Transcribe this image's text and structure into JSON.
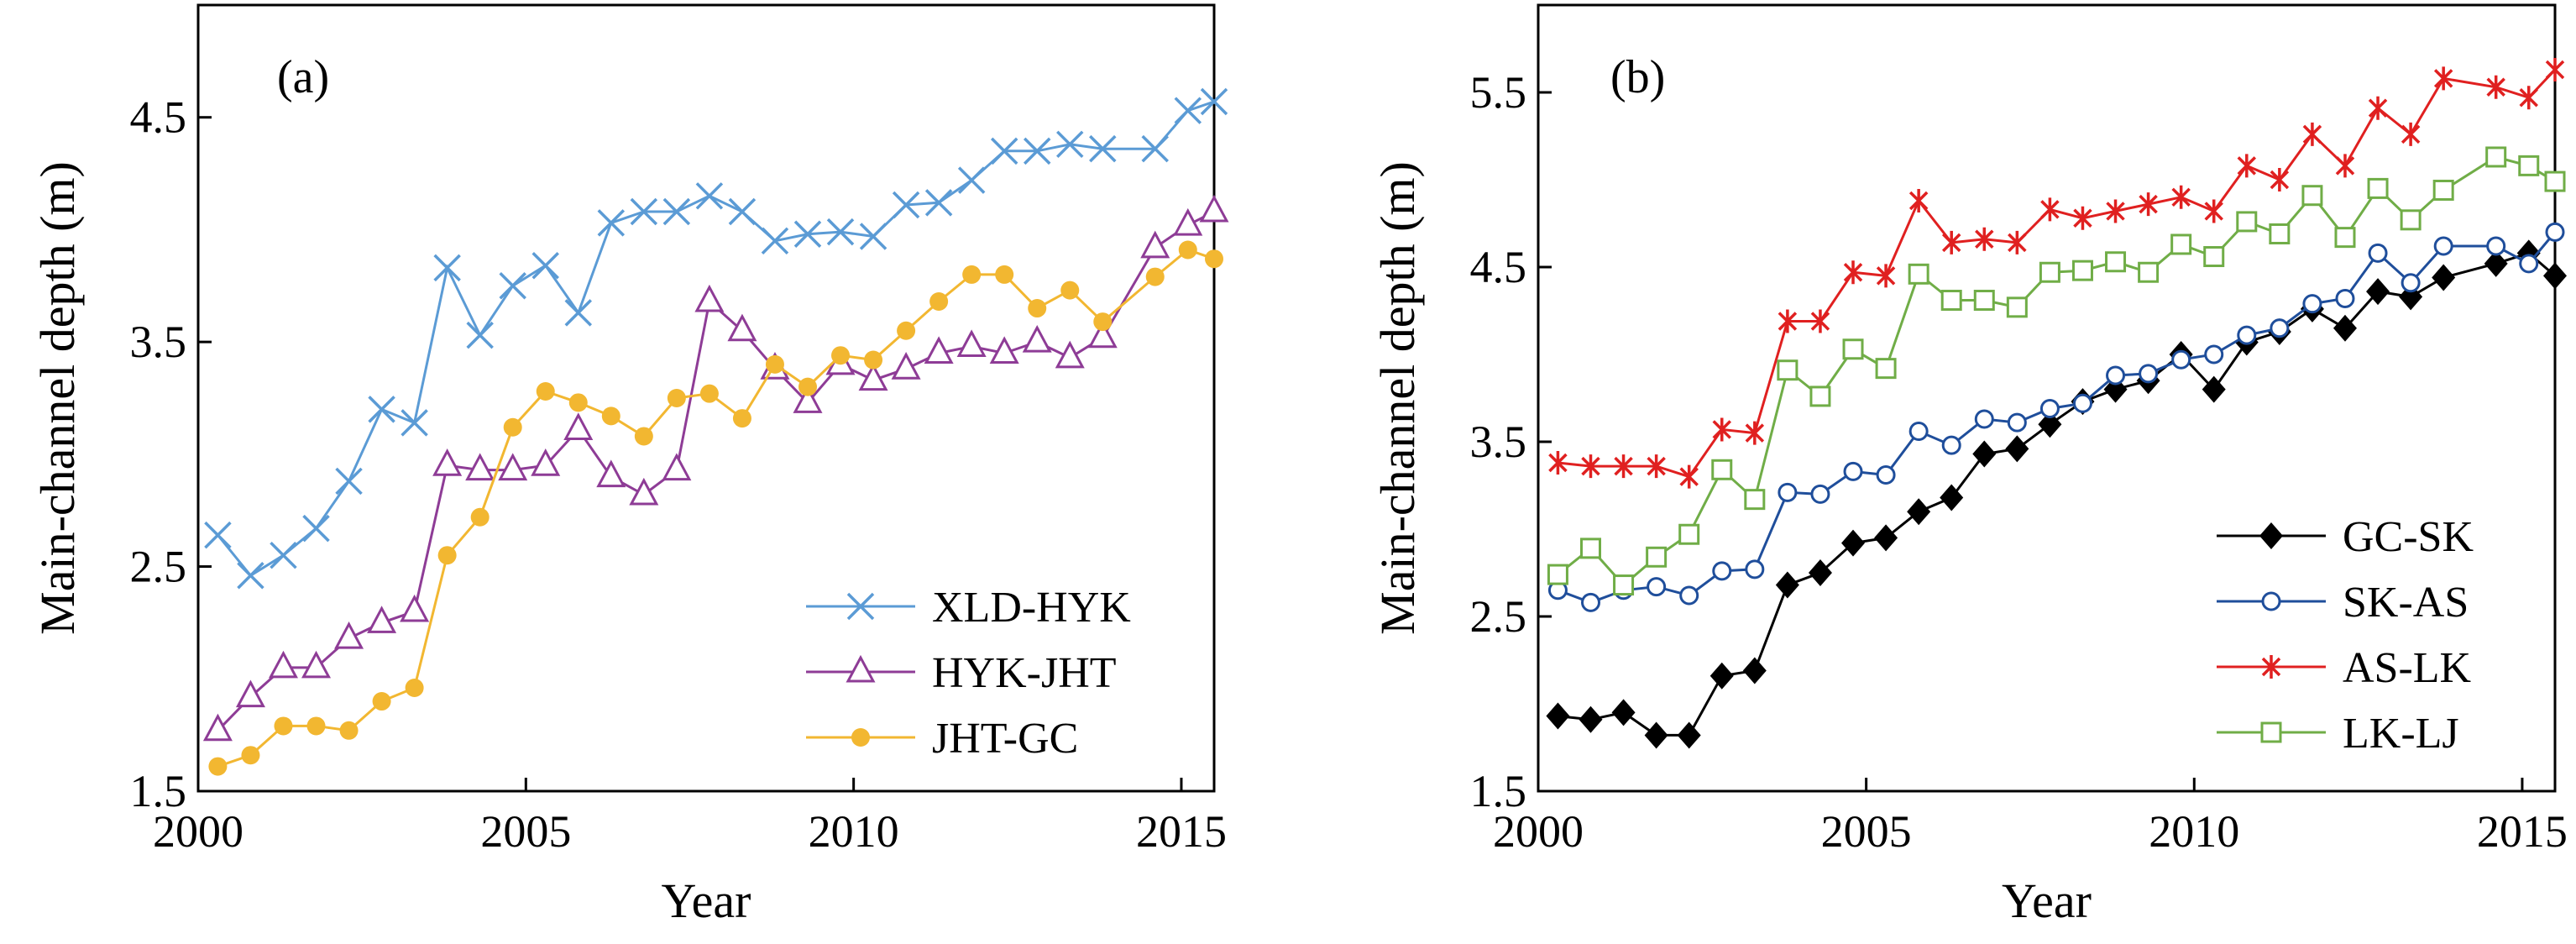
{
  "chart_data": [
    {
      "type": "line",
      "panel_label": "(a)",
      "xlabel": "Year",
      "ylabel": "Main-channel depth (m)",
      "xlim": [
        2000,
        2015.5
      ],
      "ylim": [
        1.5,
        5.0
      ],
      "xticks": [
        2000,
        2005,
        2010,
        2015
      ],
      "yticks": [
        1.5,
        2.5,
        3.5,
        4.5
      ],
      "grid": false,
      "legend_position": "bottom-right",
      "series": [
        {
          "name": "XLD-HYK",
          "color": "#5b9bd5",
          "marker": "x",
          "x": [
            2000.3,
            2000.8,
            2001.3,
            2001.8,
            2002.3,
            2002.8,
            2003.3,
            2003.8,
            2004.3,
            2004.8,
            2005.3,
            2005.8,
            2006.3,
            2006.8,
            2007.3,
            2007.8,
            2008.3,
            2008.8,
            2009.3,
            2009.8,
            2010.3,
            2010.8,
            2011.3,
            2011.8,
            2012.3,
            2012.8,
            2013.3,
            2013.8,
            2014.6,
            2015.1,
            2015.5
          ],
          "y": [
            2.64,
            2.46,
            2.55,
            2.67,
            2.88,
            3.2,
            3.14,
            3.83,
            3.53,
            3.75,
            3.84,
            3.63,
            4.03,
            4.08,
            4.08,
            4.15,
            4.08,
            3.95,
            3.98,
            3.99,
            3.97,
            4.11,
            4.12,
            4.22,
            4.35,
            4.35,
            4.38,
            4.36,
            4.36,
            4.53,
            4.57
          ]
        },
        {
          "name": "HYK-JHT",
          "color": "#8e3c96",
          "marker": "triangle-open",
          "x": [
            2000.3,
            2000.8,
            2001.3,
            2001.8,
            2002.3,
            2002.8,
            2003.3,
            2003.8,
            2004.3,
            2004.8,
            2005.3,
            2005.8,
            2006.3,
            2006.8,
            2007.3,
            2007.8,
            2008.3,
            2008.8,
            2009.3,
            2009.8,
            2010.3,
            2010.8,
            2011.3,
            2011.8,
            2012.3,
            2012.8,
            2013.3,
            2013.8,
            2014.6,
            2015.1,
            2015.5
          ],
          "y": [
            1.77,
            1.92,
            2.05,
            2.05,
            2.18,
            2.25,
            2.3,
            2.95,
            2.93,
            2.93,
            2.95,
            3.11,
            2.9,
            2.82,
            2.93,
            3.68,
            3.55,
            3.38,
            3.23,
            3.4,
            3.33,
            3.38,
            3.45,
            3.48,
            3.45,
            3.5,
            3.43,
            3.52,
            3.92,
            4.02,
            4.08
          ]
        },
        {
          "name": "JHT-GC",
          "color": "#f2b731",
          "marker": "circle",
          "x": [
            2000.3,
            2000.8,
            2001.3,
            2001.8,
            2002.3,
            2002.8,
            2003.3,
            2003.8,
            2004.3,
            2004.8,
            2005.3,
            2005.8,
            2006.3,
            2006.8,
            2007.3,
            2007.8,
            2008.3,
            2008.8,
            2009.3,
            2009.8,
            2010.3,
            2010.8,
            2011.3,
            2011.8,
            2012.3,
            2012.8,
            2013.3,
            2013.8,
            2014.6,
            2015.1,
            2015.5
          ],
          "y": [
            1.61,
            1.66,
            1.79,
            1.79,
            1.77,
            1.9,
            1.96,
            2.55,
            2.72,
            3.12,
            3.28,
            3.23,
            3.17,
            3.08,
            3.25,
            3.27,
            3.16,
            3.4,
            3.3,
            3.44,
            3.42,
            3.55,
            3.68,
            3.8,
            3.8,
            3.65,
            3.73,
            3.59,
            3.79,
            3.91,
            3.87
          ]
        }
      ]
    },
    {
      "type": "line",
      "panel_label": "(b)",
      "xlabel": "Year",
      "ylabel": "Main-channel depth (m)",
      "xlim": [
        2000,
        2015.5
      ],
      "ylim": [
        1.5,
        6.0
      ],
      "xticks": [
        2000,
        2005,
        2010,
        2015
      ],
      "yticks": [
        1.5,
        2.5,
        3.5,
        4.5,
        5.5
      ],
      "grid": false,
      "legend_position": "bottom-right",
      "series": [
        {
          "name": "GC-SK",
          "color": "#000000",
          "marker": "diamond",
          "x": [
            2000.3,
            2000.8,
            2001.3,
            2001.8,
            2002.3,
            2002.8,
            2003.3,
            2003.8,
            2004.3,
            2004.8,
            2005.3,
            2005.8,
            2006.3,
            2006.8,
            2007.3,
            2007.8,
            2008.3,
            2008.8,
            2009.3,
            2009.8,
            2010.3,
            2010.8,
            2011.3,
            2011.8,
            2012.3,
            2012.8,
            2013.3,
            2013.8,
            2014.6,
            2015.1,
            2015.5
          ],
          "y": [
            1.93,
            1.91,
            1.95,
            1.82,
            1.82,
            2.16,
            2.19,
            2.68,
            2.75,
            2.92,
            2.95,
            3.1,
            3.18,
            3.43,
            3.46,
            3.6,
            3.73,
            3.8,
            3.85,
            4.0,
            3.8,
            4.07,
            4.13,
            4.26,
            4.15,
            4.36,
            4.33,
            4.44,
            4.52,
            4.58,
            4.45
          ]
        },
        {
          "name": "SK-AS",
          "color": "#1f4e9b",
          "marker": "circle-open",
          "x": [
            2000.3,
            2000.8,
            2001.3,
            2001.8,
            2002.3,
            2002.8,
            2003.3,
            2003.8,
            2004.3,
            2004.8,
            2005.3,
            2005.8,
            2006.3,
            2006.8,
            2007.3,
            2007.8,
            2008.3,
            2008.8,
            2009.3,
            2009.8,
            2010.3,
            2010.8,
            2011.3,
            2011.8,
            2012.3,
            2012.8,
            2013.3,
            2013.8,
            2014.6,
            2015.1,
            2015.5
          ],
          "y": [
            2.65,
            2.58,
            2.65,
            2.67,
            2.62,
            2.76,
            2.77,
            3.21,
            3.2,
            3.33,
            3.31,
            3.56,
            3.48,
            3.63,
            3.61,
            3.69,
            3.72,
            3.88,
            3.89,
            3.97,
            4.0,
            4.11,
            4.15,
            4.29,
            4.32,
            4.58,
            4.41,
            4.62,
            4.62,
            4.52,
            4.7
          ]
        },
        {
          "name": "AS-LK",
          "color": "#e02020",
          "marker": "asterisk",
          "x": [
            2000.3,
            2000.8,
            2001.3,
            2001.8,
            2002.3,
            2002.8,
            2003.3,
            2003.8,
            2004.3,
            2004.8,
            2005.3,
            2005.8,
            2006.3,
            2006.8,
            2007.3,
            2007.8,
            2008.3,
            2008.8,
            2009.3,
            2009.8,
            2010.3,
            2010.8,
            2011.3,
            2011.8,
            2012.3,
            2012.8,
            2013.3,
            2013.8,
            2014.6,
            2015.1,
            2015.5
          ],
          "y": [
            3.38,
            3.36,
            3.36,
            3.36,
            3.3,
            3.57,
            3.55,
            4.19,
            4.19,
            4.47,
            4.45,
            4.88,
            4.64,
            4.66,
            4.64,
            4.83,
            4.78,
            4.82,
            4.86,
            4.9,
            4.82,
            5.08,
            5.0,
            5.26,
            5.08,
            5.41,
            5.26,
            5.58,
            5.53,
            5.47,
            5.63
          ]
        },
        {
          "name": "LK-LJ",
          "color": "#70ad47",
          "marker": "square-open",
          "x": [
            2000.3,
            2000.8,
            2001.3,
            2001.8,
            2002.3,
            2002.8,
            2003.3,
            2003.8,
            2004.3,
            2004.8,
            2005.3,
            2005.8,
            2006.3,
            2006.8,
            2007.3,
            2007.8,
            2008.3,
            2008.8,
            2009.3,
            2009.8,
            2010.3,
            2010.8,
            2011.3,
            2011.8,
            2012.3,
            2012.8,
            2013.3,
            2013.8,
            2014.6,
            2015.1,
            2015.5
          ],
          "y": [
            2.74,
            2.89,
            2.68,
            2.84,
            2.97,
            3.34,
            3.17,
            3.91,
            3.76,
            4.03,
            3.92,
            4.46,
            4.31,
            4.31,
            4.27,
            4.47,
            4.48,
            4.53,
            4.47,
            4.63,
            4.56,
            4.76,
            4.69,
            4.91,
            4.67,
            4.95,
            4.77,
            4.94,
            5.13,
            5.08,
            4.99
          ]
        }
      ]
    }
  ]
}
